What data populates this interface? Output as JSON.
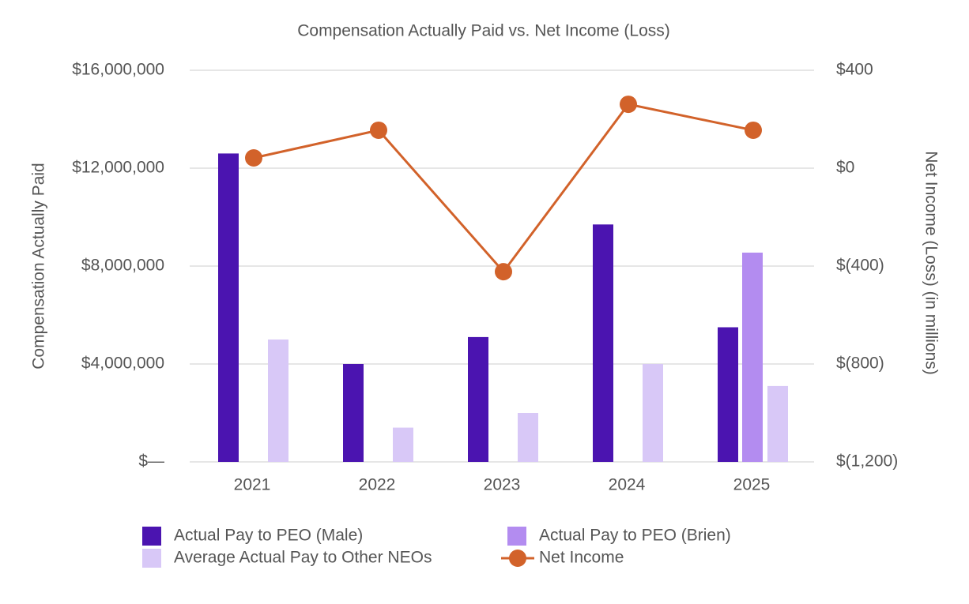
{
  "chart_data": {
    "type": "bar-line",
    "title": "Compensation Actually Paid vs. Net Income (Loss)",
    "y_label": "Compensation Actually Paid",
    "y2_label": "Net Income (Loss) (in millions)",
    "categories": [
      "2021",
      "2022",
      "2023",
      "2024",
      "2025"
    ],
    "series": [
      {
        "name": "Actual Pay to PEO (Male)",
        "type": "bar",
        "color": "#4b14b0",
        "values": [
          12600000,
          4000000,
          5100000,
          9700000,
          5500000
        ]
      },
      {
        "name": "Actual Pay to PEO (Brien)",
        "type": "bar",
        "color": "#b38cf0",
        "values": [
          null,
          null,
          null,
          null,
          8550000
        ]
      },
      {
        "name": "Average Actual Pay to Other NEOs",
        "type": "bar",
        "color": "#d8c8f7",
        "values": [
          5000000,
          1400000,
          2000000,
          4000000,
          3100000
        ]
      },
      {
        "name": "Net Income",
        "type": "line",
        "axis": "y2",
        "color": "#d2622a",
        "values": [
          42,
          155,
          -423,
          261,
          155
        ]
      }
    ],
    "ylim": [
      0,
      16000000
    ],
    "yticks": [
      {
        "value": 0,
        "label": "$—"
      },
      {
        "value": 4000000,
        "label": "$4,000,000"
      },
      {
        "value": 8000000,
        "label": "$8,000,000"
      },
      {
        "value": 12000000,
        "label": "$12,000,000"
      },
      {
        "value": 16000000,
        "label": "$16,000,000"
      }
    ],
    "y2lim": [
      -1200,
      400
    ],
    "y2ticks": [
      {
        "value": -1200,
        "label": "$(1,200)"
      },
      {
        "value": -800,
        "label": "$(800)"
      },
      {
        "value": -400,
        "label": "$(400)"
      },
      {
        "value": 0,
        "label": "$0"
      },
      {
        "value": 400,
        "label": "$400"
      }
    ],
    "grid": true
  }
}
